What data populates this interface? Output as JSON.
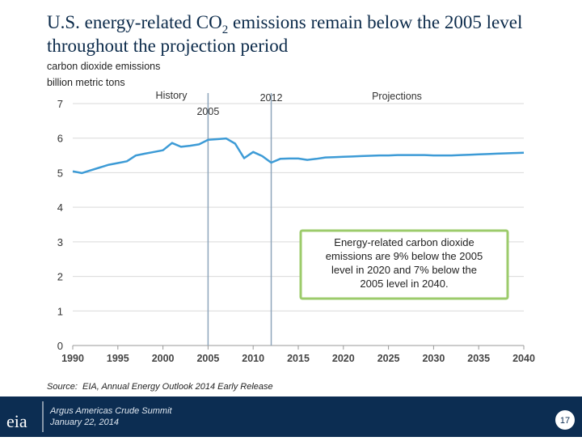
{
  "slide": {
    "title": [
      "U.S. energy-related CO",
      "2",
      " emissions remain below the 2005 level",
      "throughout the projection period"
    ],
    "source": "Source:  EIA, Annual Energy Outlook 2014 Early Release",
    "logo": "eia",
    "event": "Argus Americas Crude Summit",
    "date": "January 22, 2014",
    "page": "17"
  },
  "chart_data": {
    "type": "line",
    "ylabel": [
      "carbon dioxide emissions",
      "billion metric tons"
    ],
    "x": [
      1990,
      1991,
      1992,
      1993,
      1994,
      1995,
      1996,
      1997,
      1998,
      1999,
      2000,
      2001,
      2002,
      2003,
      2004,
      2005,
      2006,
      2007,
      2008,
      2009,
      2010,
      2011,
      2012,
      2013,
      2014,
      2015,
      2016,
      2017,
      2018,
      2019,
      2020,
      2021,
      2022,
      2023,
      2024,
      2025,
      2026,
      2027,
      2028,
      2029,
      2030,
      2031,
      2032,
      2033,
      2034,
      2035,
      2036,
      2037,
      2038,
      2039,
      2040
    ],
    "values": [
      5.04,
      4.99,
      5.07,
      5.15,
      5.23,
      5.28,
      5.33,
      5.5,
      5.55,
      5.6,
      5.65,
      5.86,
      5.75,
      5.78,
      5.82,
      5.95,
      5.97,
      5.99,
      5.84,
      5.42,
      5.6,
      5.48,
      5.29,
      5.4,
      5.41,
      5.41,
      5.37,
      5.4,
      5.44,
      5.45,
      5.46,
      5.47,
      5.48,
      5.49,
      5.5,
      5.5,
      5.51,
      5.51,
      5.51,
      5.51,
      5.5,
      5.5,
      5.5,
      5.51,
      5.52,
      5.53,
      5.54,
      5.55,
      5.56,
      5.57,
      5.58
    ],
    "color": "#3d9bd6",
    "xlim": [
      1990,
      2040
    ],
    "ylim": [
      0,
      7
    ],
    "xticks": [
      1990,
      1995,
      2000,
      2005,
      2010,
      2015,
      2020,
      2025,
      2030,
      2035,
      2040
    ],
    "yticks": [
      0,
      1,
      2,
      3,
      4,
      5,
      6,
      7
    ],
    "grid": true,
    "vlines": [
      2005,
      2012
    ],
    "period_labels": [
      "History",
      "Projections"
    ],
    "callout": [
      "Energy-related carbon dioxide",
      "emissions are 9% below the 2005",
      "level in 2020 and 7% below the",
      "2005 level in 2040."
    ]
  }
}
